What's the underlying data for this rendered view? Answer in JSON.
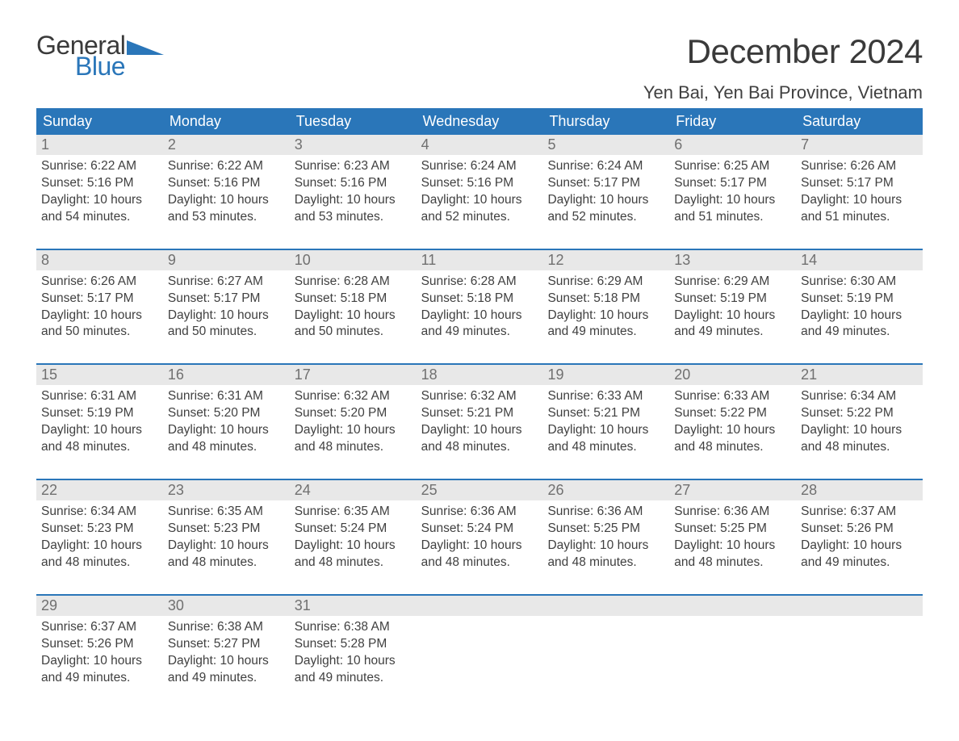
{
  "logo": {
    "word1": "General",
    "word2": "Blue"
  },
  "title": "December 2024",
  "location": "Yen Bai, Yen Bai Province, Vietnam",
  "colors": {
    "brand_blue": "#2a76b9",
    "header_text": "#ffffff",
    "date_bg": "#e8e8e8",
    "date_text": "#707070",
    "body_text": "#404040",
    "page_bg": "#ffffff"
  },
  "day_headers": [
    "Sunday",
    "Monday",
    "Tuesday",
    "Wednesday",
    "Thursday",
    "Friday",
    "Saturday"
  ],
  "weeks": [
    [
      {
        "n": "1",
        "sr": "Sunrise: 6:22 AM",
        "ss": "Sunset: 5:16 PM",
        "d1": "Daylight: 10 hours",
        "d2": "and 54 minutes."
      },
      {
        "n": "2",
        "sr": "Sunrise: 6:22 AM",
        "ss": "Sunset: 5:16 PM",
        "d1": "Daylight: 10 hours",
        "d2": "and 53 minutes."
      },
      {
        "n": "3",
        "sr": "Sunrise: 6:23 AM",
        "ss": "Sunset: 5:16 PM",
        "d1": "Daylight: 10 hours",
        "d2": "and 53 minutes."
      },
      {
        "n": "4",
        "sr": "Sunrise: 6:24 AM",
        "ss": "Sunset: 5:16 PM",
        "d1": "Daylight: 10 hours",
        "d2": "and 52 minutes."
      },
      {
        "n": "5",
        "sr": "Sunrise: 6:24 AM",
        "ss": "Sunset: 5:17 PM",
        "d1": "Daylight: 10 hours",
        "d2": "and 52 minutes."
      },
      {
        "n": "6",
        "sr": "Sunrise: 6:25 AM",
        "ss": "Sunset: 5:17 PM",
        "d1": "Daylight: 10 hours",
        "d2": "and 51 minutes."
      },
      {
        "n": "7",
        "sr": "Sunrise: 6:26 AM",
        "ss": "Sunset: 5:17 PM",
        "d1": "Daylight: 10 hours",
        "d2": "and 51 minutes."
      }
    ],
    [
      {
        "n": "8",
        "sr": "Sunrise: 6:26 AM",
        "ss": "Sunset: 5:17 PM",
        "d1": "Daylight: 10 hours",
        "d2": "and 50 minutes."
      },
      {
        "n": "9",
        "sr": "Sunrise: 6:27 AM",
        "ss": "Sunset: 5:17 PM",
        "d1": "Daylight: 10 hours",
        "d2": "and 50 minutes."
      },
      {
        "n": "10",
        "sr": "Sunrise: 6:28 AM",
        "ss": "Sunset: 5:18 PM",
        "d1": "Daylight: 10 hours",
        "d2": "and 50 minutes."
      },
      {
        "n": "11",
        "sr": "Sunrise: 6:28 AM",
        "ss": "Sunset: 5:18 PM",
        "d1": "Daylight: 10 hours",
        "d2": "and 49 minutes."
      },
      {
        "n": "12",
        "sr": "Sunrise: 6:29 AM",
        "ss": "Sunset: 5:18 PM",
        "d1": "Daylight: 10 hours",
        "d2": "and 49 minutes."
      },
      {
        "n": "13",
        "sr": "Sunrise: 6:29 AM",
        "ss": "Sunset: 5:19 PM",
        "d1": "Daylight: 10 hours",
        "d2": "and 49 minutes."
      },
      {
        "n": "14",
        "sr": "Sunrise: 6:30 AM",
        "ss": "Sunset: 5:19 PM",
        "d1": "Daylight: 10 hours",
        "d2": "and 49 minutes."
      }
    ],
    [
      {
        "n": "15",
        "sr": "Sunrise: 6:31 AM",
        "ss": "Sunset: 5:19 PM",
        "d1": "Daylight: 10 hours",
        "d2": "and 48 minutes."
      },
      {
        "n": "16",
        "sr": "Sunrise: 6:31 AM",
        "ss": "Sunset: 5:20 PM",
        "d1": "Daylight: 10 hours",
        "d2": "and 48 minutes."
      },
      {
        "n": "17",
        "sr": "Sunrise: 6:32 AM",
        "ss": "Sunset: 5:20 PM",
        "d1": "Daylight: 10 hours",
        "d2": "and 48 minutes."
      },
      {
        "n": "18",
        "sr": "Sunrise: 6:32 AM",
        "ss": "Sunset: 5:21 PM",
        "d1": "Daylight: 10 hours",
        "d2": "and 48 minutes."
      },
      {
        "n": "19",
        "sr": "Sunrise: 6:33 AM",
        "ss": "Sunset: 5:21 PM",
        "d1": "Daylight: 10 hours",
        "d2": "and 48 minutes."
      },
      {
        "n": "20",
        "sr": "Sunrise: 6:33 AM",
        "ss": "Sunset: 5:22 PM",
        "d1": "Daylight: 10 hours",
        "d2": "and 48 minutes."
      },
      {
        "n": "21",
        "sr": "Sunrise: 6:34 AM",
        "ss": "Sunset: 5:22 PM",
        "d1": "Daylight: 10 hours",
        "d2": "and 48 minutes."
      }
    ],
    [
      {
        "n": "22",
        "sr": "Sunrise: 6:34 AM",
        "ss": "Sunset: 5:23 PM",
        "d1": "Daylight: 10 hours",
        "d2": "and 48 minutes."
      },
      {
        "n": "23",
        "sr": "Sunrise: 6:35 AM",
        "ss": "Sunset: 5:23 PM",
        "d1": "Daylight: 10 hours",
        "d2": "and 48 minutes."
      },
      {
        "n": "24",
        "sr": "Sunrise: 6:35 AM",
        "ss": "Sunset: 5:24 PM",
        "d1": "Daylight: 10 hours",
        "d2": "and 48 minutes."
      },
      {
        "n": "25",
        "sr": "Sunrise: 6:36 AM",
        "ss": "Sunset: 5:24 PM",
        "d1": "Daylight: 10 hours",
        "d2": "and 48 minutes."
      },
      {
        "n": "26",
        "sr": "Sunrise: 6:36 AM",
        "ss": "Sunset: 5:25 PM",
        "d1": "Daylight: 10 hours",
        "d2": "and 48 minutes."
      },
      {
        "n": "27",
        "sr": "Sunrise: 6:36 AM",
        "ss": "Sunset: 5:25 PM",
        "d1": "Daylight: 10 hours",
        "d2": "and 48 minutes."
      },
      {
        "n": "28",
        "sr": "Sunrise: 6:37 AM",
        "ss": "Sunset: 5:26 PM",
        "d1": "Daylight: 10 hours",
        "d2": "and 49 minutes."
      }
    ],
    [
      {
        "n": "29",
        "sr": "Sunrise: 6:37 AM",
        "ss": "Sunset: 5:26 PM",
        "d1": "Daylight: 10 hours",
        "d2": "and 49 minutes."
      },
      {
        "n": "30",
        "sr": "Sunrise: 6:38 AM",
        "ss": "Sunset: 5:27 PM",
        "d1": "Daylight: 10 hours",
        "d2": "and 49 minutes."
      },
      {
        "n": "31",
        "sr": "Sunrise: 6:38 AM",
        "ss": "Sunset: 5:28 PM",
        "d1": "Daylight: 10 hours",
        "d2": "and 49 minutes."
      },
      {
        "n": "",
        "sr": "",
        "ss": "",
        "d1": "",
        "d2": ""
      },
      {
        "n": "",
        "sr": "",
        "ss": "",
        "d1": "",
        "d2": ""
      },
      {
        "n": "",
        "sr": "",
        "ss": "",
        "d1": "",
        "d2": ""
      },
      {
        "n": "",
        "sr": "",
        "ss": "",
        "d1": "",
        "d2": ""
      }
    ]
  ]
}
